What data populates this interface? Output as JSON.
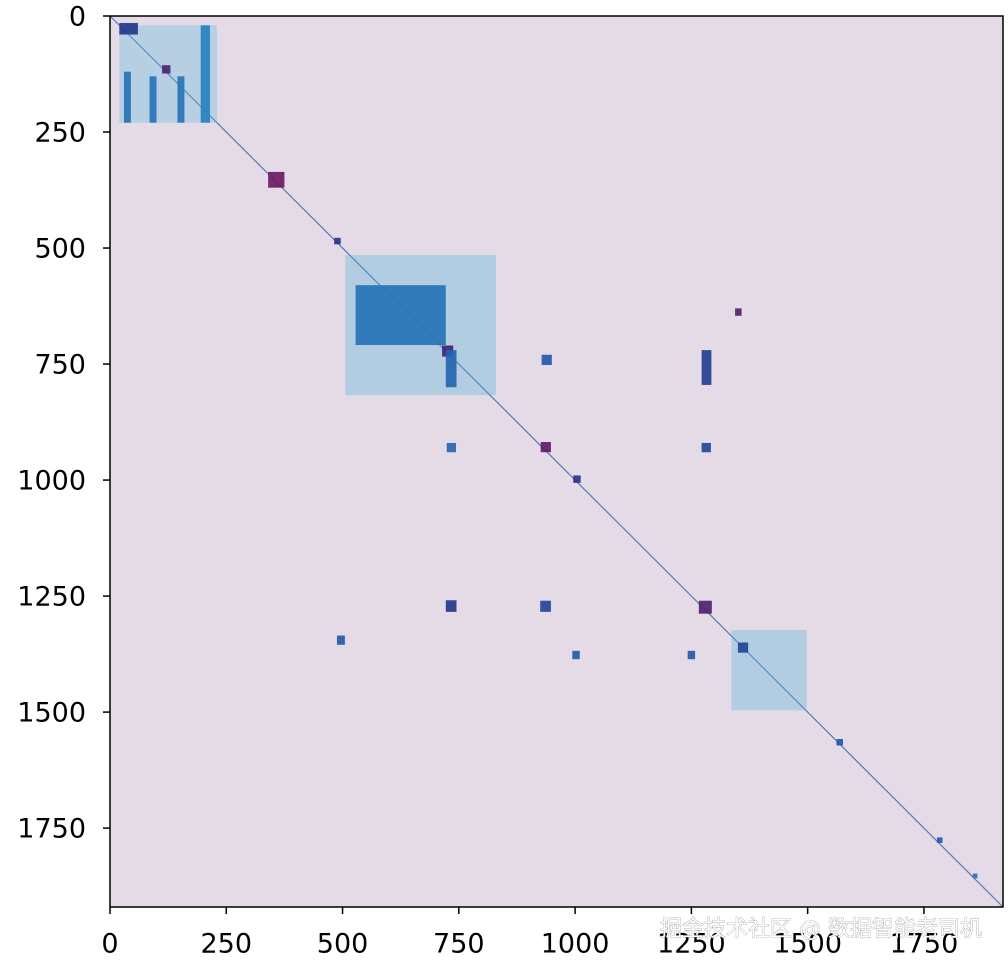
{
  "chart_data": {
    "type": "matrix",
    "xlim": [
      0,
      1920
    ],
    "ylim": [
      0,
      1920
    ],
    "xticks": [
      0,
      250,
      500,
      750,
      1000,
      1250,
      1500,
      1750
    ],
    "yticks": [
      0,
      250,
      500,
      750,
      1000,
      1250,
      1500,
      1750
    ],
    "y_inverted": true,
    "diagonal": true,
    "background": "#e5dbe6",
    "colors": [
      "#8fd6ea",
      "#2a9ccc",
      "#1f56a8",
      "#1f2a80",
      "#6a1660"
    ],
    "blocks": [
      {
        "x": [
          20,
          230
        ],
        "y": [
          20,
          230
        ],
        "value": 0.12
      },
      {
        "x": [
          30,
          45
        ],
        "y": [
          120,
          230
        ],
        "value": 0.4
      },
      {
        "x": [
          85,
          100
        ],
        "y": [
          130,
          230
        ],
        "value": 0.4
      },
      {
        "x": [
          145,
          160
        ],
        "y": [
          130,
          230
        ],
        "value": 0.4
      },
      {
        "x": [
          195,
          215
        ],
        "y": [
          20,
          230
        ],
        "value": 0.35
      },
      {
        "x": [
          20,
          60
        ],
        "y": [
          15,
          40
        ],
        "value": 0.7
      },
      {
        "x": [
          112,
          130
        ],
        "y": [
          106,
          124
        ],
        "value": 0.9
      },
      {
        "x": [
          340,
          375
        ],
        "y": [
          336,
          370
        ],
        "value": 1.0
      },
      {
        "x": [
          482,
          496
        ],
        "y": [
          478,
          492
        ],
        "value": 0.7
      },
      {
        "x": [
          506,
          830
        ],
        "y": [
          515,
          817
        ],
        "value": 0.15
      },
      {
        "x": [
          528,
          722
        ],
        "y": [
          580,
          709
        ],
        "value": 0.4
      },
      {
        "x": [
          714,
          738
        ],
        "y": [
          710,
          734
        ],
        "value": 0.85
      },
      {
        "x": [
          1272,
          1293
        ],
        "y": [
          720,
          795
        ],
        "value": 0.65
      },
      {
        "x": [
          928,
          950
        ],
        "y": [
          730,
          752
        ],
        "value": 0.5
      },
      {
        "x": [
          722,
          745
        ],
        "y": [
          720,
          800
        ],
        "value": 0.45
      },
      {
        "x": [
          926,
          948
        ],
        "y": [
          918,
          940
        ],
        "value": 0.95
      },
      {
        "x": [
          724,
          744
        ],
        "y": [
          920,
          940
        ],
        "value": 0.45
      },
      {
        "x": [
          1272,
          1292
        ],
        "y": [
          920,
          940
        ],
        "value": 0.6
      },
      {
        "x": [
          996,
          1012
        ],
        "y": [
          990,
          1006
        ],
        "value": 0.7
      },
      {
        "x": [
          1266,
          1294
        ],
        "y": [
          1260,
          1288
        ],
        "value": 0.9
      },
      {
        "x": [
          722,
          745
        ],
        "y": [
          1259,
          1284
        ],
        "value": 0.7
      },
      {
        "x": [
          925,
          948
        ],
        "y": [
          1260,
          1284
        ],
        "value": 0.6
      },
      {
        "x": [
          1336,
          1498
        ],
        "y": [
          1323,
          1496
        ],
        "value": 0.15
      },
      {
        "x": [
          1350,
          1372
        ],
        "y": [
          1350,
          1372
        ],
        "value": 0.6
      },
      {
        "x": [
          488,
          505
        ],
        "y": [
          1335,
          1355
        ],
        "value": 0.5
      },
      {
        "x": [
          994,
          1010
        ],
        "y": [
          1368,
          1386
        ],
        "value": 0.5
      },
      {
        "x": [
          1242,
          1258
        ],
        "y": [
          1368,
          1386
        ],
        "value": 0.5
      },
      {
        "x": [
          1344,
          1358
        ],
        "y": [
          630,
          646
        ],
        "value": 0.9
      },
      {
        "x": [
          1562,
          1576
        ],
        "y": [
          1558,
          1572
        ],
        "value": 0.5
      },
      {
        "x": [
          1778,
          1790
        ],
        "y": [
          1770,
          1782
        ],
        "value": 0.5
      },
      {
        "x": [
          1855,
          1865
        ],
        "y": [
          1848,
          1858
        ],
        "value": 0.4
      }
    ]
  },
  "watermark": "掘金技术社区 @ 数据智能老司机"
}
